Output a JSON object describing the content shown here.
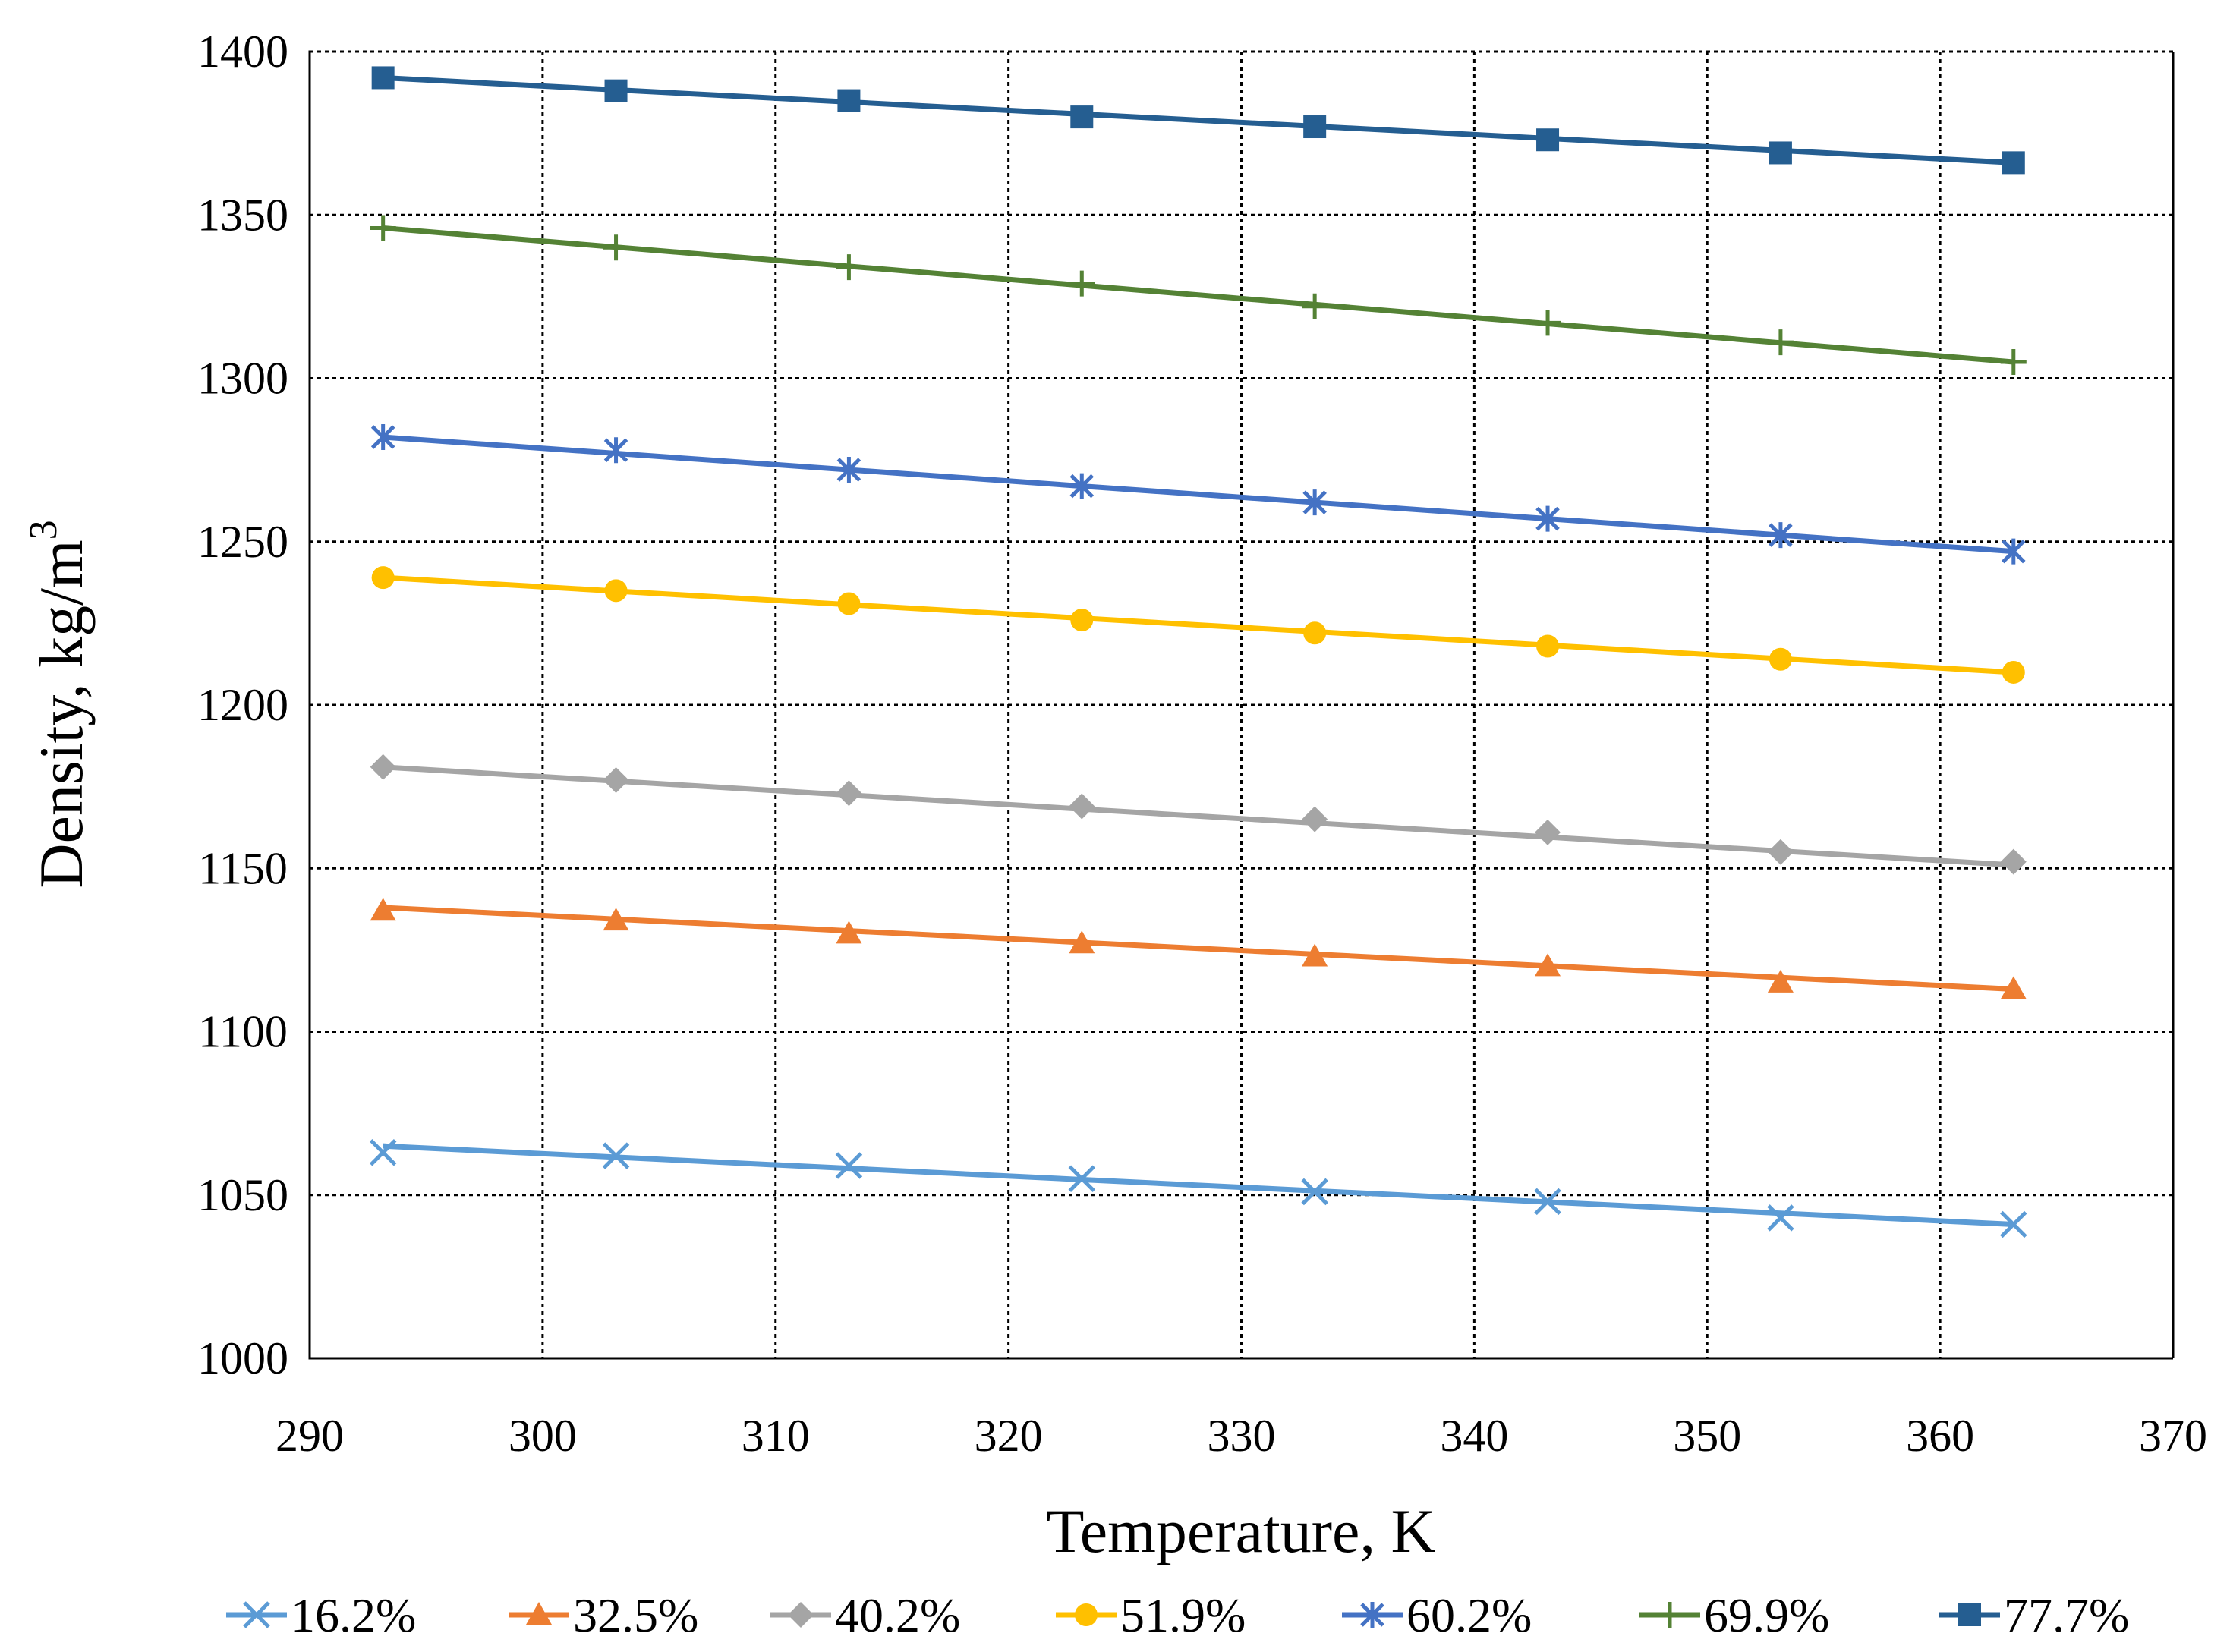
{
  "chart_data": {
    "type": "line",
    "title": "",
    "xlabel": "Temperature, K",
    "ylabel": "Density, kg/m",
    "ylabel_superscript": "3",
    "xlim": [
      290,
      370
    ],
    "ylim": [
      1000,
      1400
    ],
    "xticks": [
      290,
      300,
      310,
      320,
      330,
      340,
      350,
      360,
      370
    ],
    "yticks": [
      1000,
      1050,
      1100,
      1150,
      1200,
      1250,
      1300,
      1350,
      1400
    ],
    "grid": true,
    "legend_position": "bottom",
    "x": [
      293.15,
      303.15,
      313.15,
      323.15,
      333.15,
      343.15,
      353.15,
      363.15
    ],
    "series": [
      {
        "name": "16.2%",
        "marker": "x",
        "color": "#5B9BD5",
        "values": [
          1063,
          1062,
          1059,
          1055,
          1051,
          1048,
          1043,
          1041
        ],
        "fit": [
          1065,
          1041
        ]
      },
      {
        "name": "32.5%",
        "marker": "triangle",
        "color": "#ED7D31",
        "values": [
          1137,
          1134,
          1130,
          1127,
          1123,
          1120,
          1115,
          1113
        ],
        "fit": [
          1138,
          1113
        ]
      },
      {
        "name": "40.2%",
        "marker": "diamond",
        "color": "#A5A5A5",
        "values": [
          1181,
          1177,
          1173,
          1169,
          1165,
          1161,
          1155,
          1152
        ],
        "fit": [
          1181,
          1151
        ]
      },
      {
        "name": "51.9%",
        "marker": "circle",
        "color": "#FFC000",
        "values": [
          1239,
          1235,
          1231,
          1226,
          1222,
          1218,
          1214,
          1210
        ],
        "fit": [
          1239,
          1210
        ]
      },
      {
        "name": "60.2%",
        "marker": "asterisk",
        "color": "#4472C4",
        "values": [
          1282,
          1278,
          1272,
          1267,
          1262,
          1257,
          1252,
          1247
        ],
        "fit": [
          1282,
          1247
        ]
      },
      {
        "name": "69.9%",
        "marker": "plus",
        "color": "#548235",
        "values": [
          1346,
          1340,
          1334,
          1329,
          1322,
          1317,
          1311,
          1305
        ],
        "fit": [
          1346,
          1305
        ]
      },
      {
        "name": "77.7%",
        "marker": "square",
        "color": "#255E91",
        "values": [
          1392,
          1388,
          1385,
          1380,
          1377,
          1373,
          1369,
          1366
        ],
        "fit": [
          1392,
          1366
        ]
      }
    ]
  }
}
